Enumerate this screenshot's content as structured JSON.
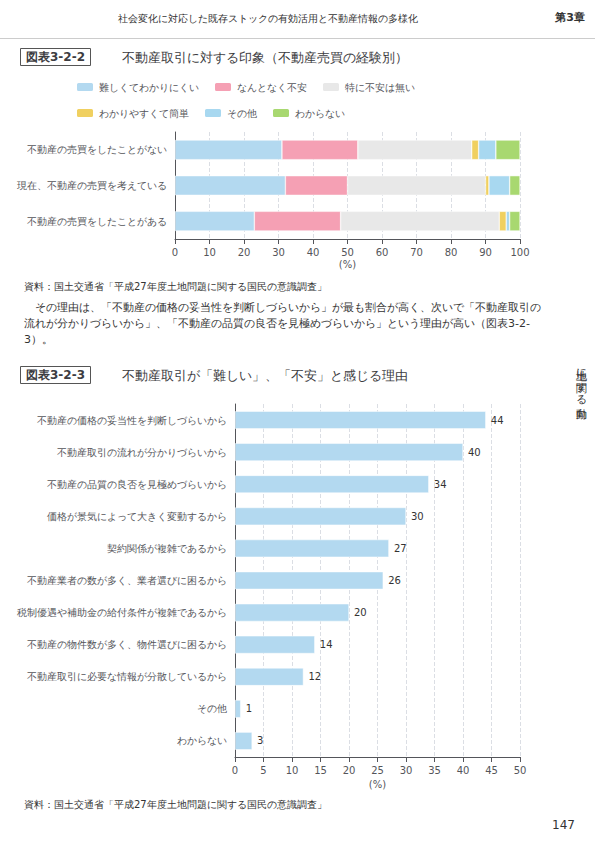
{
  "chart_data": [
    {
      "type": "bar",
      "orientation": "horizontal",
      "stacked": true,
      "subtitle": "図表3-2-2",
      "title": "不動産取引に対する印象（不動産売買の経験別）",
      "categories": [
        "不動産の売買をしたことがない",
        "現在、不動産の売買を考えている",
        "不動産の売買をしたことがある"
      ],
      "series": [
        {
          "name": "難しくてわかりにくい",
          "color": "#b3d9f0",
          "values": [
            31,
            32,
            23
          ]
        },
        {
          "name": "なんとなく不安",
          "color": "#f5a0b4",
          "values": [
            22,
            18,
            25
          ]
        },
        {
          "name": "特に不安は無い",
          "color": "#e8e8e8",
          "values": [
            33,
            40,
            46
          ]
        },
        {
          "name": "わかりやすくて簡単",
          "color": "#f0d060",
          "values": [
            2,
            1,
            2
          ]
        },
        {
          "name": "その他",
          "color": "#a8d8f0",
          "values": [
            5,
            6,
            1
          ]
        },
        {
          "name": "わからない",
          "color": "#a8d870",
          "values": [
            7,
            3,
            3
          ]
        }
      ],
      "xlim": [
        0,
        100
      ],
      "xticks": [
        0,
        10,
        20,
        30,
        40,
        50,
        60,
        70,
        80,
        90,
        100
      ],
      "xlabel": "(%)",
      "grid": true,
      "legend": "top",
      "annotations": [
        "資料：国土交通省「平成27年度土地問題に関する国民の意識調査」",
        "社会変化に対応した既存ストックの有効活用と不動産情報の多様化",
        "第3章",
        "土地に関する動向",
        "　その理由は、「不動産の価格の妥当性を判断しづらいから」が最も割合が高く、次いで「不動産取引の流れが分かりづらいから」、「不動産の品質の良否を見極めづらいから」という理由が高い（図表3-2-3）。",
        "147"
      ]
    },
    {
      "type": "bar",
      "orientation": "horizontal",
      "subtitle": "図表3-2-3",
      "title": "不動産取引が「難しい」、「不安」と感じる理由",
      "categories": [
        "不動産の価格の妥当性を判断しづらいから",
        "不動産取引の流れが分かりづらいから",
        "不動産の品質の良否を見極めづらいから",
        "価格が景気によって大きく変動するから",
        "契約関係が複雑であるから",
        "不動産業者の数が多く、業者選びに困るから",
        "税制優遇や補助金の給付条件が複雑であるから",
        "不動産の物件数が多く、物件選びに困るから",
        "不動産取引に必要な情報が分散しているから",
        "その他",
        "わからない"
      ],
      "values": [
        44,
        40,
        34,
        30,
        27,
        26,
        20,
        14,
        12,
        1,
        3
      ],
      "color": "#b3d9f0",
      "data_labels": true,
      "xlim": [
        0,
        50
      ],
      "xticks": [
        0,
        5,
        10,
        15,
        20,
        25,
        30,
        35,
        40,
        45,
        50
      ],
      "xlabel": "(%)",
      "grid": true,
      "annotations": [
        "資料：国土交通省「平成27年度土地問題に関する国民の意識調査」"
      ]
    }
  ]
}
